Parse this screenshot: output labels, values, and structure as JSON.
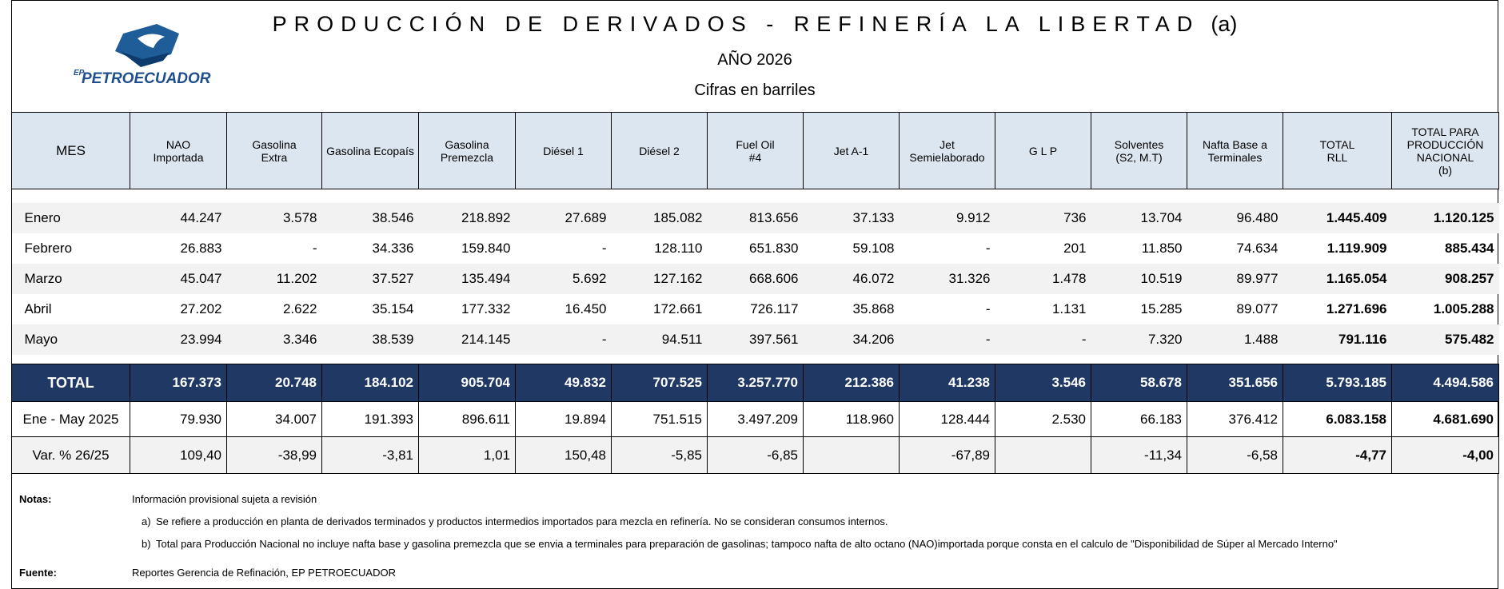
{
  "header": {
    "title": "PRODUCCIÓN DE DERIVADOS - REFINERÍA LA LIBERTAD",
    "title_note": "(a)",
    "subtitle": "AÑO  2026",
    "unit": "Cifras en barriles"
  },
  "logo": {
    "prefix": "EP",
    "name": "PETROECUADOR"
  },
  "table": {
    "columns": [
      "MES",
      "NAO\nImportada",
      "Gasolina\nExtra",
      "Gasolina Ecopaís",
      "Gasolina\nPremezcla",
      "Diésel 1",
      "Diésel 2",
      "Fuel Oil\n#4",
      "Jet A-1",
      "Jet\nSemielaborado",
      "G L P",
      "Solventes\n(S2, M.T)",
      "Nafta Base a\nTerminales",
      "TOTAL\nRLL",
      "TOTAL PARA\nPRODUCCIÓN\nNACIONAL\n(b)"
    ],
    "rows": [
      [
        "Enero",
        "44.247",
        "3.578",
        "38.546",
        "218.892",
        "27.689",
        "185.082",
        "813.656",
        "37.133",
        "9.912",
        "736",
        "13.704",
        "96.480",
        "1.445.409",
        "1.120.125"
      ],
      [
        "Febrero",
        "26.883",
        "-",
        "34.336",
        "159.840",
        "-",
        "128.110",
        "651.830",
        "59.108",
        "-",
        "201",
        "11.850",
        "74.634",
        "1.119.909",
        "885.434"
      ],
      [
        "Marzo",
        "45.047",
        "11.202",
        "37.527",
        "135.494",
        "5.692",
        "127.162",
        "668.606",
        "46.072",
        "31.326",
        "1.478",
        "10.519",
        "89.977",
        "1.165.054",
        "908.257"
      ],
      [
        "Abril",
        "27.202",
        "2.622",
        "35.154",
        "177.332",
        "16.450",
        "172.661",
        "726.117",
        "35.868",
        "-",
        "1.131",
        "15.285",
        "89.077",
        "1.271.696",
        "1.005.288"
      ],
      [
        "Mayo",
        "23.994",
        "3.346",
        "38.539",
        "214.145",
        "-",
        "94.511",
        "397.561",
        "34.206",
        "-",
        "-",
        "7.320",
        "1.488",
        "791.116",
        "575.482"
      ]
    ],
    "total": [
      "TOTAL",
      "167.373",
      "20.748",
      "184.102",
      "905.704",
      "49.832",
      "707.525",
      "3.257.770",
      "212.386",
      "41.238",
      "3.546",
      "58.678",
      "351.656",
      "5.793.185",
      "4.494.586"
    ],
    "previous": [
      "Ene - May 2025",
      "79.930",
      "34.007",
      "191.393",
      "896.611",
      "19.894",
      "751.515",
      "3.497.209",
      "118.960",
      "128.444",
      "2.530",
      "66.183",
      "376.412",
      "6.083.158",
      "4.681.690"
    ],
    "variation": [
      "Var. % 26/25",
      "109,40",
      "-38,99",
      "-3,81",
      "1,01",
      "150,48",
      "-5,85",
      "-6,85",
      null,
      "-67,89",
      null,
      "-11,34",
      "-6,58",
      "-4,77",
      "-4,00"
    ]
  },
  "notes": {
    "label": "Notas:",
    "items": [
      {
        "text": "Información provisional sujeta a revisión"
      },
      {
        "marker": "a)",
        "text": "Se refiere a producción en planta de derivados terminados y productos intermedios importados para  mezcla en refinería. No se consideran consumos internos."
      },
      {
        "marker": "b)",
        "text": "Total para Producción Nacional no incluye nafta base y gasolina premezcla que se envia a terminales para preparación de gasolinas;  tampoco nafta de alto octano (NAO)importada porque consta en el calculo de  \"Disponibilidad de Súper al Mercado Interno\""
      }
    ]
  },
  "source": {
    "label": "Fuente:",
    "text": "Reportes  Gerencia de Refinación,  EP PETROECUADOR"
  }
}
